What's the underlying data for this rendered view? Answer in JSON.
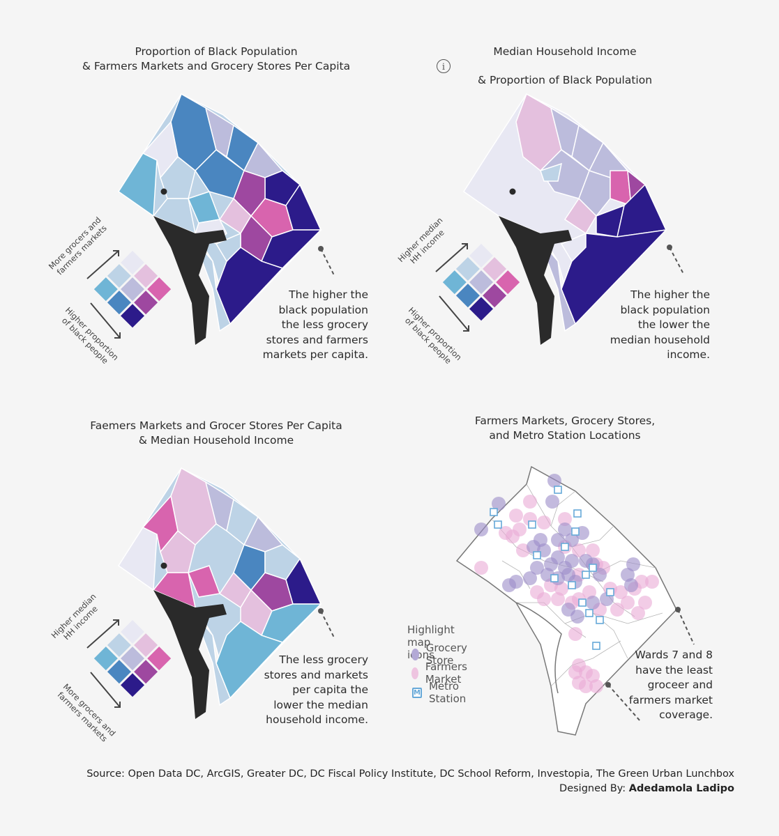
{
  "panels": [
    {
      "title_line1": "Proportion of Black Population",
      "title_line2": "& Farmers Markets and Grocery Stores Per Capita",
      "axis_top_line1": "More grocers and",
      "axis_top_line2": "farmers markets",
      "axis_bottom_line1": "Higher proportion",
      "axis_bottom_line2": "of black people",
      "annotation": [
        "The higher the",
        "black population",
        "the less grocery",
        "stores and farmers",
        "markets per capita."
      ]
    },
    {
      "title_line1": "Median Household Income",
      "title_line2": "& Proportion of Black Population",
      "info_icon_glyph": "i",
      "axis_top_line1": "Higher median",
      "axis_top_line2": "HH income",
      "axis_bottom_line1": "Higher proportion",
      "axis_bottom_line2": "of black people",
      "annotation": [
        "The higher the",
        "black population",
        "the lower the",
        "median household",
        "income."
      ]
    },
    {
      "title_line1": "Faemers Markets and Grocer Stores Per Capita",
      "title_line2": "& Median Household Income",
      "axis_top_line1": "Higher median",
      "axis_top_line2": "HH income",
      "axis_bottom_line1": "More grocers and",
      "axis_bottom_line2": "farmers markets",
      "annotation": [
        "The less grocery",
        "stores and markets",
        "per capita the",
        "lower the median",
        "household income."
      ]
    },
    {
      "title_line1": "Farmers Markets, Grocery Stores,",
      "title_line2": "and Metro Station Locations",
      "legend_title": "Highlight map icons",
      "legend_items": [
        "Grocery Store",
        "Farmers Market",
        "Metro Station"
      ],
      "metro_glyph": "M",
      "annotation": [
        "Wards 7 and 8",
        "have the least",
        "groceer and",
        "farmers market",
        "coverage."
      ]
    }
  ],
  "source_line": "Source: Open Data DC, ArcGIS, Greater DC, DC Fiscal Policy Institute, DC School Reform, Investopia, The Green Urban Lunchbox",
  "designed_by_label": "Designed By:",
  "designer_name": "Adedamola Ladipo",
  "colors": {
    "background": "#f5f5f5",
    "bivariate_grid": [
      "#e8e8f3",
      "#bdd3e6",
      "#e4c0de",
      "#6fb5d6",
      "#bcbcdc",
      "#d864ae",
      "#4a86c0",
      "#9e48a0",
      "#2c1b8a"
    ],
    "grocery_store": "#9b8cc8",
    "farmers_market": "#eaaad6",
    "metro_station": "#66a8d8",
    "river": "#2a2a2a"
  }
}
